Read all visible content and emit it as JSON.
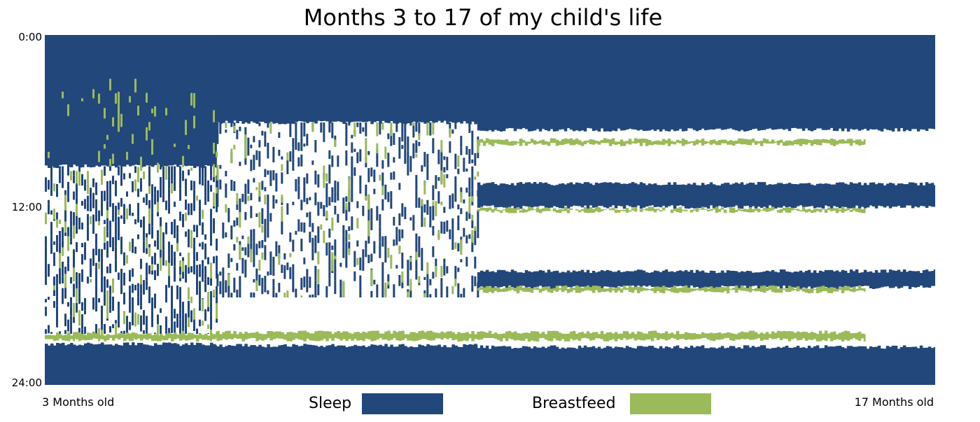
{
  "chart_data": {
    "type": "heatmap",
    "title": "Months 3 to 17 of my child's life",
    "y_ticks": [
      "0:00",
      "12:00",
      "24:00"
    ],
    "y_range_hours": [
      0,
      24
    ],
    "x_start_label": "3 Months old",
    "x_end_label": "17 Months old",
    "x_range_months": [
      3,
      17
    ],
    "grid": false,
    "legend_placement": "bottom",
    "series": [
      {
        "name": "Sleep",
        "color": "#22477a",
        "phases": [
          {
            "months": [
              3,
              5.7
            ],
            "blocks": [
              [
                0,
                9
              ],
              [
                21.2,
                24
              ]
            ],
            "fragmented": [
              [
                9,
                20.5
              ]
            ],
            "density": 0.45
          },
          {
            "months": [
              5.7,
              9.8
            ],
            "blocks": [
              [
                0,
                6
              ],
              [
                21.3,
                24
              ]
            ],
            "fragmented": [
              [
                6,
                18
              ]
            ],
            "density": 0.3
          },
          {
            "months": [
              9.8,
              17
            ],
            "blocks": [
              [
                0,
                6.5
              ],
              [
                10.2,
                11.8
              ],
              [
                16.2,
                17.3
              ],
              [
                21.4,
                24
              ]
            ],
            "fragmented": [],
            "density": 0
          }
        ]
      },
      {
        "name": "Breastfeed",
        "color": "#9bba59",
        "phases": [
          {
            "months": [
              3,
              5.7
            ],
            "blocks": [
              [
                20.5,
                20.9
              ]
            ],
            "fragmented": [
              [
                3,
                21
              ]
            ],
            "density": 0.08
          },
          {
            "months": [
              5.7,
              9.8
            ],
            "blocks": [
              [
                20.4,
                20.9
              ]
            ],
            "fragmented": [
              [
                6,
                18
              ]
            ],
            "density": 0.06
          },
          {
            "months": [
              9.8,
              15.9
            ],
            "blocks": [
              [
                7.2,
                7.5
              ],
              [
                11.9,
                12.1
              ],
              [
                17.3,
                17.6
              ],
              [
                20.4,
                20.9
              ]
            ],
            "fragmented": [],
            "density": 0
          }
        ]
      }
    ]
  }
}
